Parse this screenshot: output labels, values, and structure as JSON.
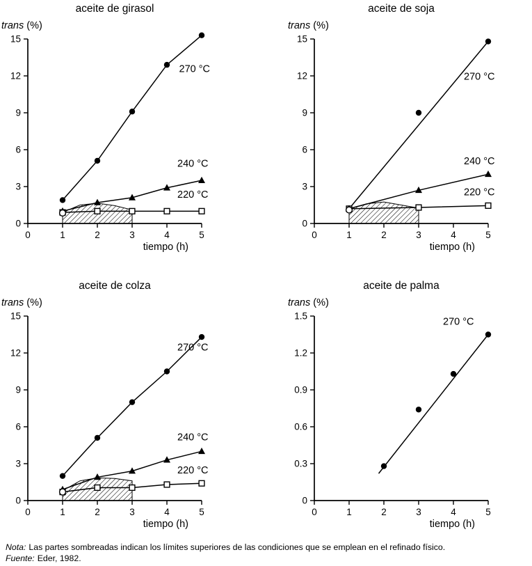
{
  "page": {
    "background": "#ffffff",
    "ink": "#000000"
  },
  "footer": {
    "nota_prefix": "Nota:",
    "nota_text": "Las partes sombreadas indican los límites superiores de las condiciones que se emplean en el refinado físico.",
    "fuente_prefix": "Fuente:",
    "fuente_text": "Eder, 1982."
  },
  "chart_data": [
    {
      "type": "line",
      "title": "aceite de girasol",
      "ylabel_italic": "trans",
      "ylabel_rest": " (%)",
      "xlabel": "tiempo (h)",
      "xlim": [
        0,
        5
      ],
      "ylim": [
        0,
        15
      ],
      "xticks": [
        0,
        1,
        2,
        3,
        4,
        5
      ],
      "yticks": [
        0,
        3,
        6,
        9,
        12,
        15
      ],
      "grid": false,
      "legend": "inline-labels",
      "shaded_region": {
        "points": [
          [
            1,
            0
          ],
          [
            1,
            0.9
          ],
          [
            1.5,
            1.5
          ],
          [
            2,
            1.65
          ],
          [
            2.5,
            1.45
          ],
          [
            3,
            1.1
          ],
          [
            3,
            0
          ]
        ]
      },
      "series": [
        {
          "name": "270c",
          "label": "270 °C",
          "marker": "circle",
          "label_pos": [
            4.35,
            12.3
          ],
          "points": [
            [
              1,
              1.9
            ],
            [
              2,
              5.1
            ],
            [
              3,
              9.1
            ],
            [
              4,
              12.9
            ],
            [
              5,
              15.3
            ]
          ]
        },
        {
          "name": "240c",
          "label": "240 °C",
          "marker": "triangle",
          "label_pos": [
            4.3,
            4.6
          ],
          "points": [
            [
              1,
              1.0
            ],
            [
              2,
              1.7
            ],
            [
              3,
              2.1
            ],
            [
              4,
              2.9
            ],
            [
              5,
              3.5
            ]
          ]
        },
        {
          "name": "220c",
          "label": "220 °C",
          "marker": "square-open",
          "label_pos": [
            4.3,
            2.1
          ],
          "points": [
            [
              1,
              0.9
            ],
            [
              2,
              1.0
            ],
            [
              3,
              1.0
            ],
            [
              4,
              1.0
            ],
            [
              5,
              1.0
            ]
          ]
        },
        {
          "name": "start",
          "label": "",
          "marker": "circle-open",
          "line": false,
          "points": [
            [
              1,
              0.85
            ]
          ]
        }
      ]
    },
    {
      "type": "line",
      "title": "aceite de soja",
      "ylabel_italic": "trans",
      "ylabel_rest": " (%)",
      "xlabel": "tiempo (h)",
      "xlim": [
        0,
        5
      ],
      "ylim": [
        0,
        15
      ],
      "xticks": [
        0,
        1,
        2,
        3,
        4,
        5
      ],
      "yticks": [
        0,
        3,
        6,
        9,
        12,
        15
      ],
      "grid": false,
      "legend": "inline-labels",
      "shaded_region": {
        "points": [
          [
            1,
            0
          ],
          [
            1,
            1.2
          ],
          [
            1.5,
            1.6
          ],
          [
            2,
            1.75
          ],
          [
            2.5,
            1.5
          ],
          [
            3,
            1.25
          ],
          [
            3,
            0
          ]
        ]
      },
      "series": [
        {
          "name": "270c-fit",
          "label": "270 °C",
          "marker": "none",
          "label_pos": [
            4.3,
            11.7
          ],
          "points": [
            [
              1,
              1.2
            ],
            [
              5,
              14.8
            ]
          ]
        },
        {
          "name": "270c",
          "label": "",
          "marker": "circle",
          "line": false,
          "points": [
            [
              1,
              1.2
            ],
            [
              3,
              9.0
            ],
            [
              5,
              14.8
            ]
          ]
        },
        {
          "name": "240c",
          "label": "240 °C",
          "marker": "triangle",
          "label_pos": [
            4.3,
            4.8
          ],
          "points": [
            [
              1,
              1.2
            ],
            [
              3,
              2.7
            ],
            [
              5,
              4.0
            ]
          ]
        },
        {
          "name": "220c",
          "label": "220 °C",
          "marker": "square-open",
          "label_pos": [
            4.3,
            2.3
          ],
          "points": [
            [
              1,
              1.2
            ],
            [
              3,
              1.3
            ],
            [
              5,
              1.45
            ]
          ]
        },
        {
          "name": "start",
          "label": "",
          "marker": "circle-open",
          "line": false,
          "points": [
            [
              1,
              1.1
            ]
          ]
        }
      ]
    },
    {
      "type": "line",
      "title": "aceite de colza",
      "ylabel_italic": "trans",
      "ylabel_rest": " (%)",
      "xlabel": "tiempo (h)",
      "xlim": [
        0,
        5
      ],
      "ylim": [
        0,
        15
      ],
      "xticks": [
        0,
        1,
        2,
        3,
        4,
        5
      ],
      "yticks": [
        0,
        3,
        6,
        9,
        12,
        15
      ],
      "grid": false,
      "legend": "inline-labels",
      "shaded_region": {
        "points": [
          [
            1,
            0
          ],
          [
            1,
            0.8
          ],
          [
            1.5,
            1.6
          ],
          [
            2,
            1.85
          ],
          [
            2.5,
            1.8
          ],
          [
            3,
            1.6
          ],
          [
            3,
            0
          ]
        ]
      },
      "series": [
        {
          "name": "270c",
          "label": "270 °C",
          "marker": "circle",
          "label_pos": [
            4.3,
            12.2
          ],
          "points": [
            [
              1,
              2.0
            ],
            [
              2,
              5.1
            ],
            [
              3,
              8.0
            ],
            [
              4,
              10.5
            ],
            [
              5,
              13.3
            ]
          ]
        },
        {
          "name": "240c",
          "label": "240 °C",
          "marker": "triangle",
          "label_pos": [
            4.3,
            4.9
          ],
          "points": [
            [
              1,
              0.9
            ],
            [
              2,
              1.9
            ],
            [
              3,
              2.4
            ],
            [
              4,
              3.3
            ],
            [
              5,
              4.0
            ]
          ]
        },
        {
          "name": "220c",
          "label": "220 °C",
          "marker": "square-open",
          "label_pos": [
            4.3,
            2.2
          ],
          "points": [
            [
              1,
              0.7
            ],
            [
              2,
              1.05
            ],
            [
              3,
              1.05
            ],
            [
              4,
              1.3
            ],
            [
              5,
              1.4
            ]
          ]
        },
        {
          "name": "start",
          "label": "",
          "marker": "circle-open",
          "line": false,
          "points": [
            [
              1,
              0.7
            ]
          ]
        }
      ]
    },
    {
      "type": "line",
      "title": "aceite de palma",
      "ylabel_italic": "trans",
      "ylabel_rest": " (%)",
      "xlabel": "tiempo (h)",
      "xlim": [
        0,
        5
      ],
      "ylim": [
        0,
        1.5
      ],
      "xticks": [
        0,
        1,
        2,
        3,
        4,
        5
      ],
      "yticks": [
        0,
        0.3,
        0.6,
        0.9,
        1.2,
        1.5
      ],
      "grid": false,
      "legend": "inline-labels",
      "series": [
        {
          "name": "270c-fit",
          "label": "270 °C",
          "marker": "none",
          "label_pos": [
            3.7,
            1.43
          ],
          "points": [
            [
              1.85,
              0.22
            ],
            [
              5,
              1.35
            ]
          ]
        },
        {
          "name": "270c",
          "label": "",
          "marker": "circle",
          "line": false,
          "points": [
            [
              2,
              0.28
            ],
            [
              3,
              0.74
            ],
            [
              4,
              1.03
            ],
            [
              5,
              1.35
            ]
          ]
        }
      ]
    }
  ]
}
